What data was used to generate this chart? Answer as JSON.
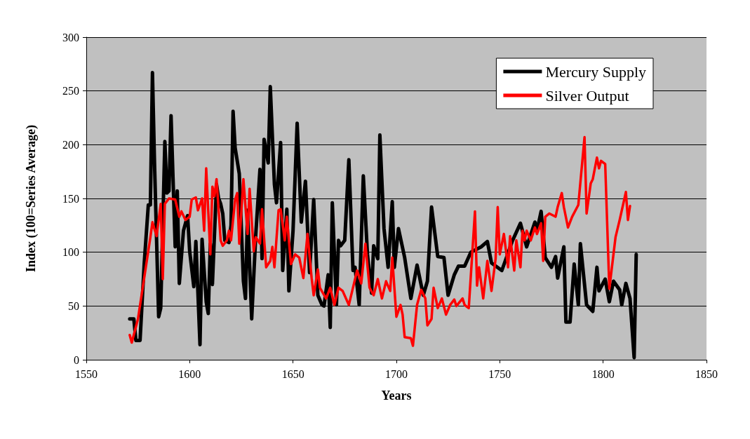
{
  "chart_data": {
    "type": "line",
    "xlabel": "Years",
    "ylabel": "Index (100=Series Average)",
    "xlim": [
      1550,
      1850
    ],
    "xticks": [
      1550,
      1600,
      1650,
      1700,
      1750,
      1800,
      1850
    ],
    "ylim": [
      0,
      300
    ],
    "yticks": [
      0,
      50,
      100,
      150,
      200,
      250,
      300
    ],
    "grid": "y",
    "legend": "top right",
    "marker": "none",
    "line_style": "solid",
    "series": [
      {
        "name": "Mercury Supply",
        "color": "#000000",
        "x": [
          1571,
          1573,
          1574,
          1576,
          1578,
          1580,
          1581,
          1582,
          1583,
          1585,
          1586,
          1588,
          1589,
          1590,
          1591,
          1593,
          1594,
          1595,
          1597,
          1599,
          1600,
          1602,
          1603,
          1605,
          1606,
          1608,
          1609,
          1610,
          1611,
          1613,
          1614,
          1615,
          1616,
          1617,
          1619,
          1620,
          1621,
          1622,
          1624,
          1626,
          1627,
          1628,
          1630,
          1632,
          1634,
          1635,
          1636,
          1638,
          1639,
          1641,
          1642,
          1644,
          1645,
          1647,
          1648,
          1650,
          1652,
          1654,
          1656,
          1658,
          1660,
          1662,
          1664,
          1665,
          1667,
          1668,
          1669,
          1671,
          1672,
          1673,
          1675,
          1677,
          1679,
          1680,
          1682,
          1684,
          1686,
          1688,
          1689,
          1691,
          1692,
          1694,
          1696,
          1698,
          1699,
          1701,
          1704,
          1707,
          1710,
          1713,
          1715,
          1717,
          1720,
          1723,
          1725,
          1728,
          1730,
          1733,
          1736,
          1741,
          1744,
          1746,
          1751,
          1756,
          1760,
          1763,
          1767,
          1768,
          1770,
          1772,
          1775,
          1777,
          1778,
          1781,
          1782,
          1784,
          1786,
          1788,
          1789,
          1792,
          1795,
          1797,
          1798,
          1801,
          1803,
          1805,
          1808,
          1809,
          1811,
          1813,
          1815,
          1816
        ],
        "values": [
          38,
          38,
          18,
          18,
          89,
          144,
          144,
          267,
          183,
          40,
          48,
          203,
          155,
          157,
          227,
          105,
          157,
          71,
          120,
          134,
          101,
          68,
          110,
          14,
          112,
          54,
          43,
          108,
          70,
          163,
          150,
          145,
          136,
          111,
          109,
          125,
          231,
          197,
          173,
          73,
          57,
          139,
          38,
          117,
          177,
          94,
          205,
          183,
          254,
          163,
          146,
          202,
          83,
          140,
          64,
          120,
          220,
          128,
          166,
          81,
          149,
          60,
          51,
          50,
          79,
          30,
          146,
          51,
          111,
          106,
          111,
          186,
          83,
          86,
          51,
          171,
          98,
          62,
          106,
          94,
          209,
          122,
          86,
          147,
          86,
          122,
          95,
          57,
          88,
          60,
          73,
          142,
          96,
          95,
          60,
          79,
          87,
          87,
          100,
          105,
          110,
          90,
          83,
          110,
          127,
          105,
          128,
          120,
          138,
          95,
          86,
          96,
          76,
          105,
          35,
          35,
          89,
          51,
          108,
          51,
          45,
          86,
          64,
          75,
          54,
          73,
          65,
          51,
          71,
          57,
          2,
          98
        ]
      },
      {
        "name": "Silver Output",
        "color": "#ff0000",
        "x": [
          1571,
          1572,
          1575,
          1578,
          1581,
          1582,
          1584,
          1586,
          1587,
          1588,
          1590,
          1593,
          1595,
          1596,
          1598,
          1600,
          1601,
          1603,
          1604,
          1606,
          1607,
          1608,
          1610,
          1611,
          1612,
          1613,
          1615,
          1616,
          1618,
          1619,
          1620,
          1622,
          1623,
          1624,
          1626,
          1628,
          1629,
          1631,
          1632,
          1634,
          1635,
          1637,
          1639,
          1640,
          1641,
          1643,
          1644,
          1646,
          1647,
          1649,
          1651,
          1653,
          1655,
          1657,
          1659,
          1660,
          1662,
          1663,
          1666,
          1668,
          1670,
          1672,
          1674,
          1677,
          1681,
          1683,
          1685,
          1687,
          1689,
          1691,
          1693,
          1695,
          1697,
          1698,
          1700,
          1702,
          1703,
          1704,
          1707,
          1708,
          1710,
          1712,
          1714,
          1715,
          1717,
          1718,
          1720,
          1722,
          1724,
          1726,
          1728,
          1729,
          1732,
          1733,
          1735,
          1738,
          1739,
          1740,
          1742,
          1744,
          1746,
          1748,
          1749,
          1750,
          1752,
          1754,
          1755,
          1757,
          1758,
          1760,
          1761,
          1762,
          1763,
          1765,
          1767,
          1768,
          1770,
          1771,
          1772,
          1774,
          1777,
          1778,
          1780,
          1781,
          1783,
          1785,
          1788,
          1791,
          1792,
          1794,
          1795,
          1797,
          1798,
          1799,
          1801,
          1803,
          1806,
          1808,
          1811,
          1812,
          1813
        ],
        "values": [
          23,
          16,
          38,
          76,
          114,
          128,
          115,
          145,
          75,
          145,
          150,
          149,
          133,
          138,
          130,
          133,
          149,
          151,
          139,
          150,
          120,
          178,
          98,
          161,
          152,
          168,
          111,
          106,
          111,
          120,
          111,
          149,
          155,
          108,
          168,
          117,
          159,
          101,
          114,
          108,
          140,
          86,
          92,
          105,
          86,
          139,
          140,
          111,
          133,
          89,
          98,
          95,
          76,
          117,
          76,
          60,
          84,
          67,
          57,
          67,
          51,
          67,
          64,
          51,
          83,
          71,
          108,
          67,
          60,
          75,
          57,
          73,
          64,
          95,
          40,
          51,
          42,
          21,
          20,
          13,
          51,
          65,
          57,
          32,
          38,
          67,
          48,
          57,
          42,
          51,
          56,
          50,
          57,
          51,
          48,
          138,
          69,
          86,
          57,
          92,
          64,
          94,
          142,
          98,
          117,
          86,
          115,
          83,
          111,
          86,
          120,
          111,
          120,
          111,
          123,
          117,
          127,
          92,
          133,
          136,
          133,
          142,
          155,
          142,
          123,
          133,
          144,
          207,
          136,
          164,
          168,
          188,
          178,
          185,
          182,
          66,
          114,
          130,
          156,
          130,
          143
        ]
      }
    ]
  }
}
